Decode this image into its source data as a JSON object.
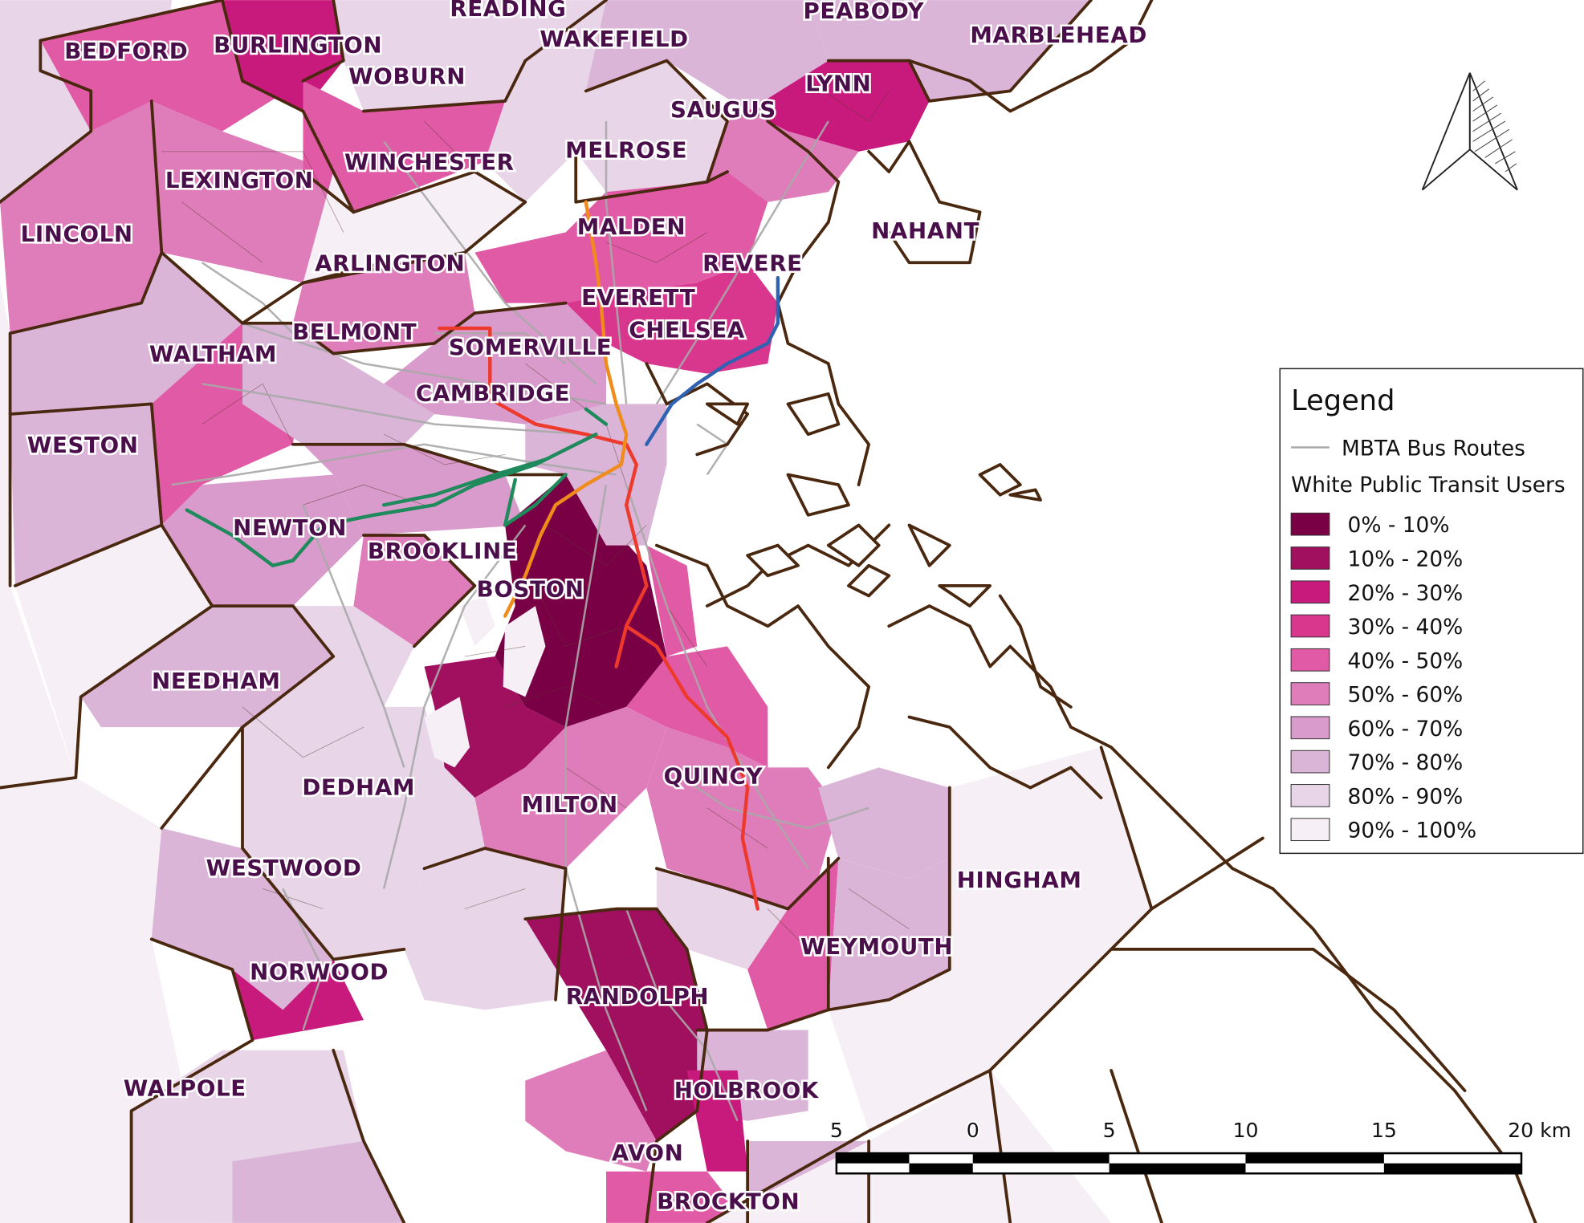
{
  "towns": [
    {
      "name": "READING"
    },
    {
      "name": "PEABODY"
    },
    {
      "name": "BEDFORD"
    },
    {
      "name": "BURLINGTON"
    },
    {
      "name": "WAKEFIELD"
    },
    {
      "name": "MARBLEHEAD"
    },
    {
      "name": "WOBURN"
    },
    {
      "name": "LYNN"
    },
    {
      "name": "SAUGUS"
    },
    {
      "name": "WINCHESTER"
    },
    {
      "name": "MELROSE"
    },
    {
      "name": "LEXINGTON"
    },
    {
      "name": "MALDEN"
    },
    {
      "name": "NAHANT"
    },
    {
      "name": "LINCOLN"
    },
    {
      "name": "ARLINGTON"
    },
    {
      "name": "REVERE"
    },
    {
      "name": "EVERETT"
    },
    {
      "name": "BELMONT"
    },
    {
      "name": "CHELSEA"
    },
    {
      "name": "SOMERVILLE"
    },
    {
      "name": "WALTHAM"
    },
    {
      "name": "CAMBRIDGE"
    },
    {
      "name": "WESTON"
    },
    {
      "name": "NEWTON"
    },
    {
      "name": "BROOKLINE"
    },
    {
      "name": "BOSTON"
    },
    {
      "name": "NEEDHAM"
    },
    {
      "name": "QUINCY"
    },
    {
      "name": "DEDHAM"
    },
    {
      "name": "MILTON"
    },
    {
      "name": "WESTWOOD"
    },
    {
      "name": "HINGHAM"
    },
    {
      "name": "WEYMOUTH"
    },
    {
      "name": "NORWOOD"
    },
    {
      "name": "RANDOLPH"
    },
    {
      "name": "WALPOLE"
    },
    {
      "name": "HOLBROOK"
    },
    {
      "name": "AVON"
    },
    {
      "name": "BROCKTON"
    }
  ],
  "legend": {
    "title": "Legend",
    "line_item": {
      "label": "MBTA Bus Routes",
      "color": "#a9a9a9"
    },
    "subtitle": "White Public Transit Users",
    "classes": [
      {
        "label": "0% - 10%",
        "color": "#7a0046"
      },
      {
        "label": "10% - 20%",
        "color": "#a0105e"
      },
      {
        "label": "20% - 30%",
        "color": "#c81a7c"
      },
      {
        "label": "30% - 40%",
        "color": "#d9368e"
      },
      {
        "label": "40% - 50%",
        "color": "#e05aa6"
      },
      {
        "label": "50% - 60%",
        "color": "#df7dbb"
      },
      {
        "label": "60% - 70%",
        "color": "#d99bcb"
      },
      {
        "label": "70% - 80%",
        "color": "#dab5d8"
      },
      {
        "label": "80% - 90%",
        "color": "#e8d5e8"
      },
      {
        "label": "90% - 100%",
        "color": "#f6eff6"
      }
    ]
  },
  "scale_bar": {
    "ticks": [
      "5",
      "0",
      "5",
      "10",
      "15",
      "20 km"
    ]
  },
  "transit_lines": [
    {
      "color": "#ee3a2c"
    },
    {
      "color": "#f08c1c"
    },
    {
      "color": "#1f8a5b"
    },
    {
      "color": "#2f62b0"
    }
  ],
  "colors": {
    "boundary": "#4a2810",
    "tract": "#5a3a2e",
    "bus": "#a9a9a9",
    "label": "#4a0f4a"
  },
  "north_arrow": {
    "icon": "north-arrow-icon"
  }
}
